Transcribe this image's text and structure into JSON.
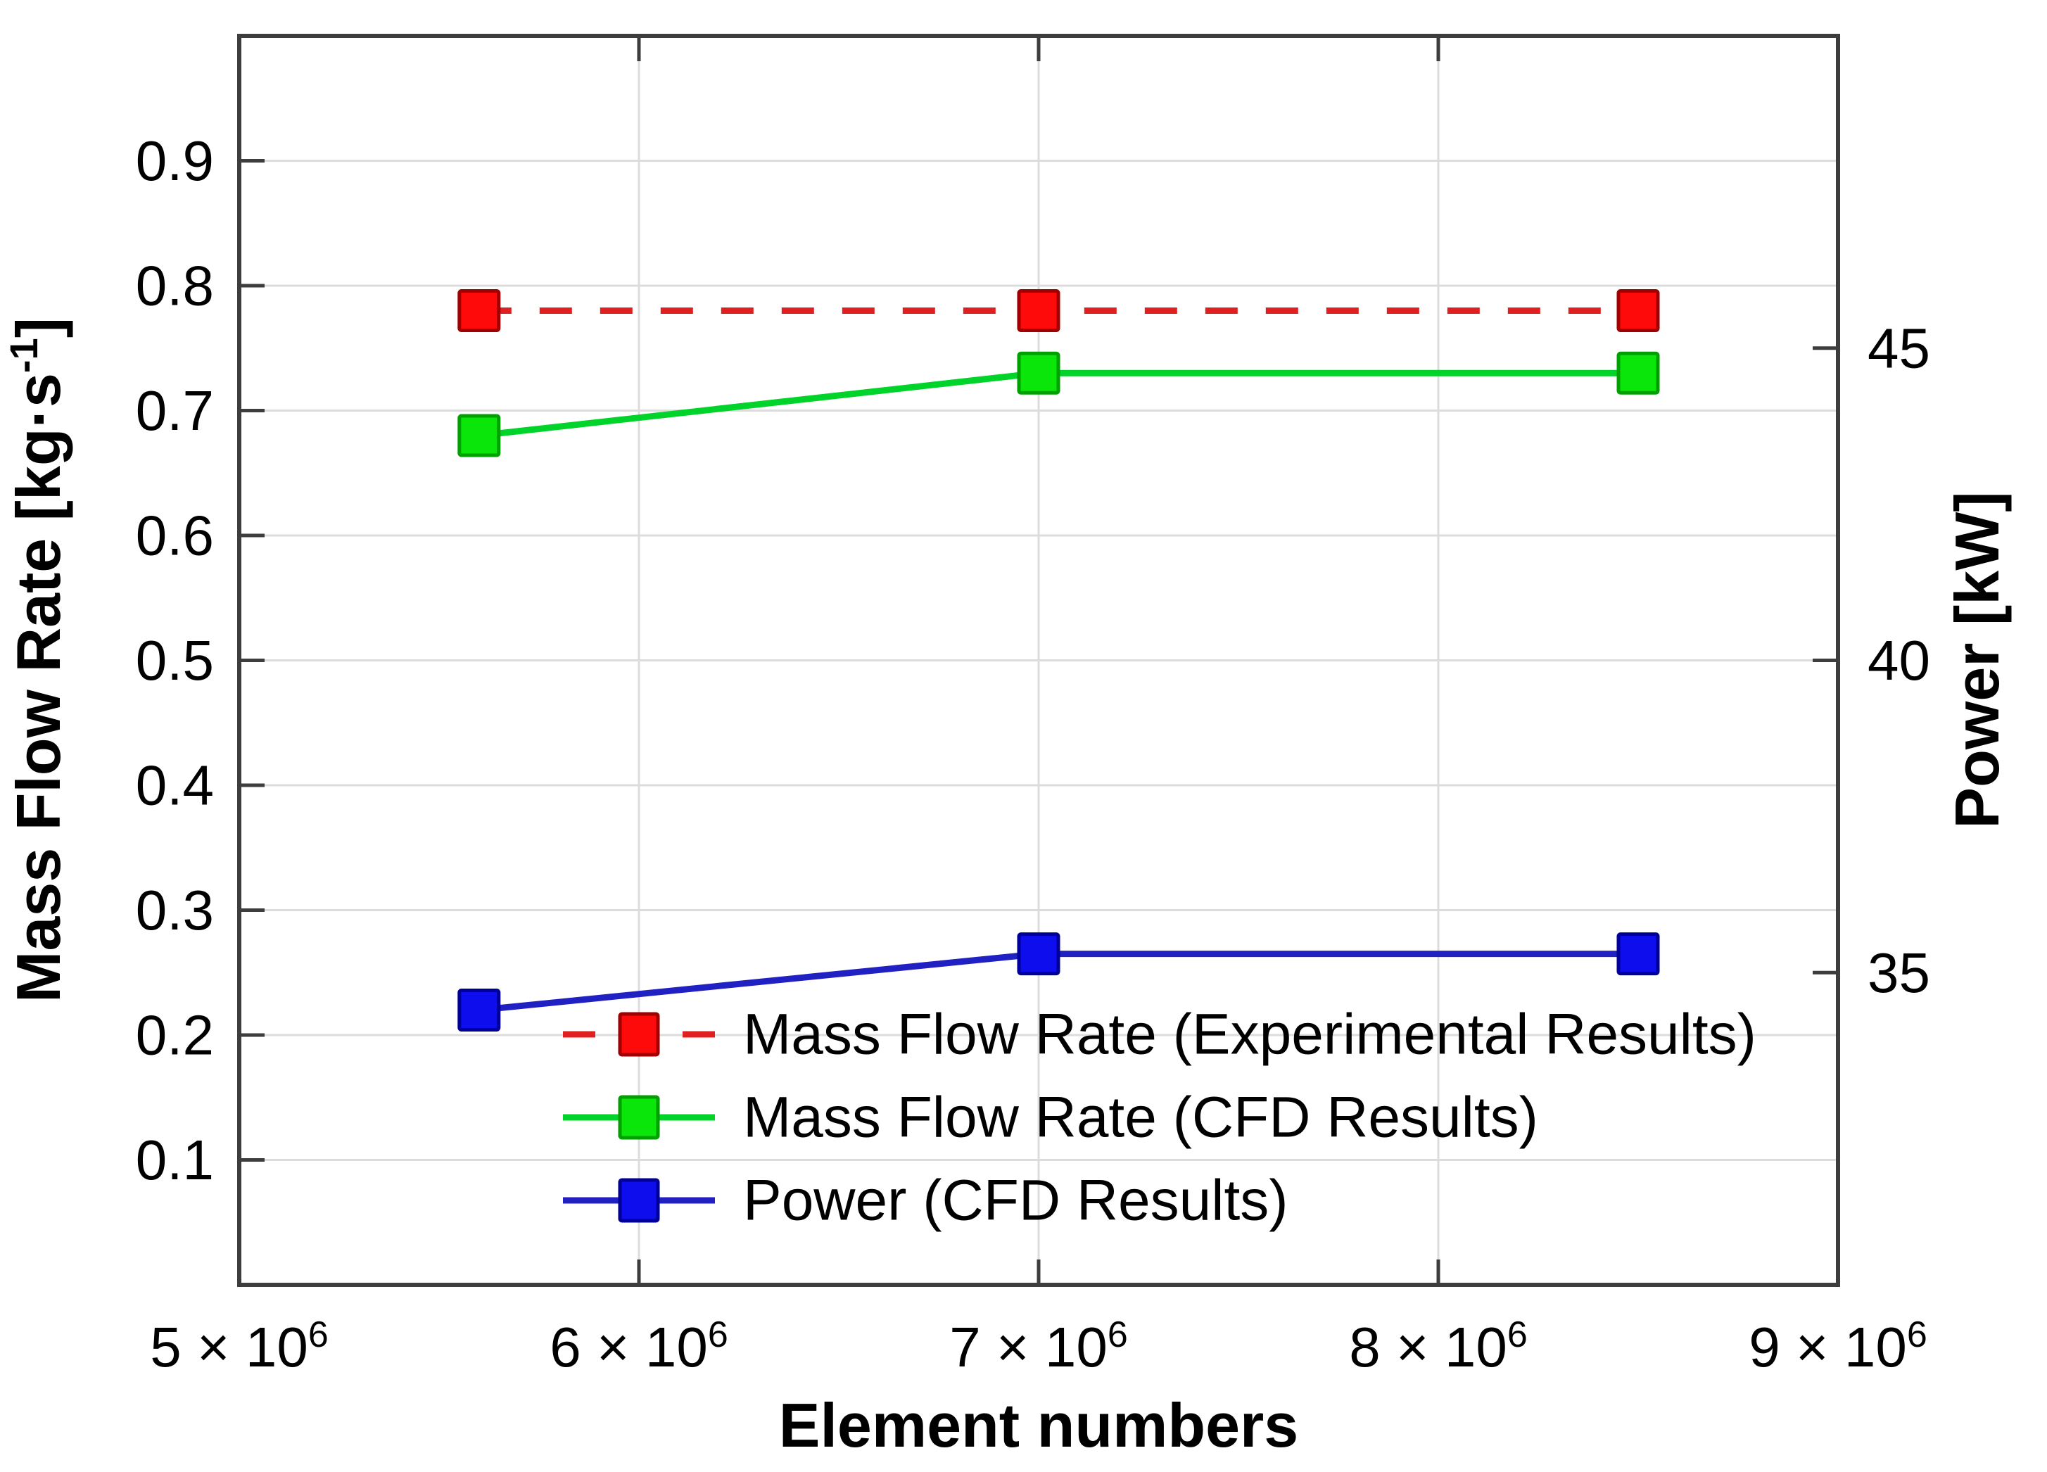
{
  "chart_data": {
    "type": "line",
    "title": "",
    "xlabel": "Element numbers",
    "ylabel_left": {
      "text": "Mass Flow Rate [kg·s",
      "sup": "-1",
      "after": "]"
    },
    "ylabel_right": "Power [kW]",
    "background_color": "#ffffff",
    "axis_color": "#3d3d3d",
    "grid_color": "#dcdcdc",
    "grid_on": true,
    "x_axis": {
      "label": "Element numbers",
      "min": 5000000,
      "max": 9000000,
      "ticks": [
        {
          "value": 5000000,
          "label": "5 × 10",
          "sup": "6"
        },
        {
          "value": 6000000,
          "label": "6 × 10",
          "sup": "6"
        },
        {
          "value": 7000000,
          "label": "7 × 10",
          "sup": "6"
        },
        {
          "value": 8000000,
          "label": "8 × 10",
          "sup": "6"
        },
        {
          "value": 9000000,
          "label": "9 × 10",
          "sup": "6"
        }
      ],
      "grid_ticks": [
        6000000,
        7000000,
        8000000
      ]
    },
    "y_left": {
      "label": "Mass Flow Rate [kg·s⁻¹]",
      "min": 0,
      "max": 1,
      "ticks": [
        0.1,
        0.2,
        0.3,
        0.4,
        0.5,
        0.6,
        0.7,
        0.8,
        0.9
      ],
      "tick_labels": [
        "0.1",
        "0.2",
        "0.3",
        "0.4",
        "0.5",
        "0.6",
        "0.7",
        "0.8",
        "0.9"
      ],
      "grid": true
    },
    "y_right": {
      "label": "Power [kW]",
      "min": 30,
      "max": 50,
      "ticks": [
        35,
        40,
        45
      ],
      "tick_labels": [
        "35",
        "40",
        "45"
      ],
      "grid": false
    },
    "series": [
      {
        "name": "Mass Flow Rate (Experimental Results)",
        "id": "mass-flow-rate-experimental",
        "axis": "left",
        "line_style": "dashed",
        "line_color": "#e02020",
        "marker": "square",
        "marker_fill": "#ff0a0a",
        "marker_stroke": "#a00000",
        "x": [
          5600000,
          7000000,
          8500000
        ],
        "y": [
          0.78,
          0.78,
          0.78
        ]
      },
      {
        "name": "Mass Flow Rate (CFD Results)",
        "id": "mass-flow-rate-cfd",
        "axis": "left",
        "line_style": "solid",
        "line_color": "#00d42a",
        "marker": "square",
        "marker_fill": "#0ae60a",
        "marker_stroke": "#00a000",
        "x": [
          5600000,
          7000000,
          8500000
        ],
        "y": [
          0.68,
          0.73,
          0.73
        ]
      },
      {
        "name": "Power (CFD Results)",
        "id": "power-cfd",
        "axis": "right",
        "line_style": "solid",
        "line_color": "#2121c3",
        "marker": "square",
        "marker_fill": "#0d0dee",
        "marker_stroke": "#000099",
        "x": [
          5600000,
          7000000,
          8500000
        ],
        "y": [
          34.4,
          35.3,
          35.3
        ]
      }
    ],
    "legend": {
      "location": "inside-bottom-left",
      "entries": [
        "Mass Flow Rate (Experimental Results)",
        "Mass Flow Rate (CFD Results)",
        "Power (CFD Results)"
      ]
    }
  }
}
